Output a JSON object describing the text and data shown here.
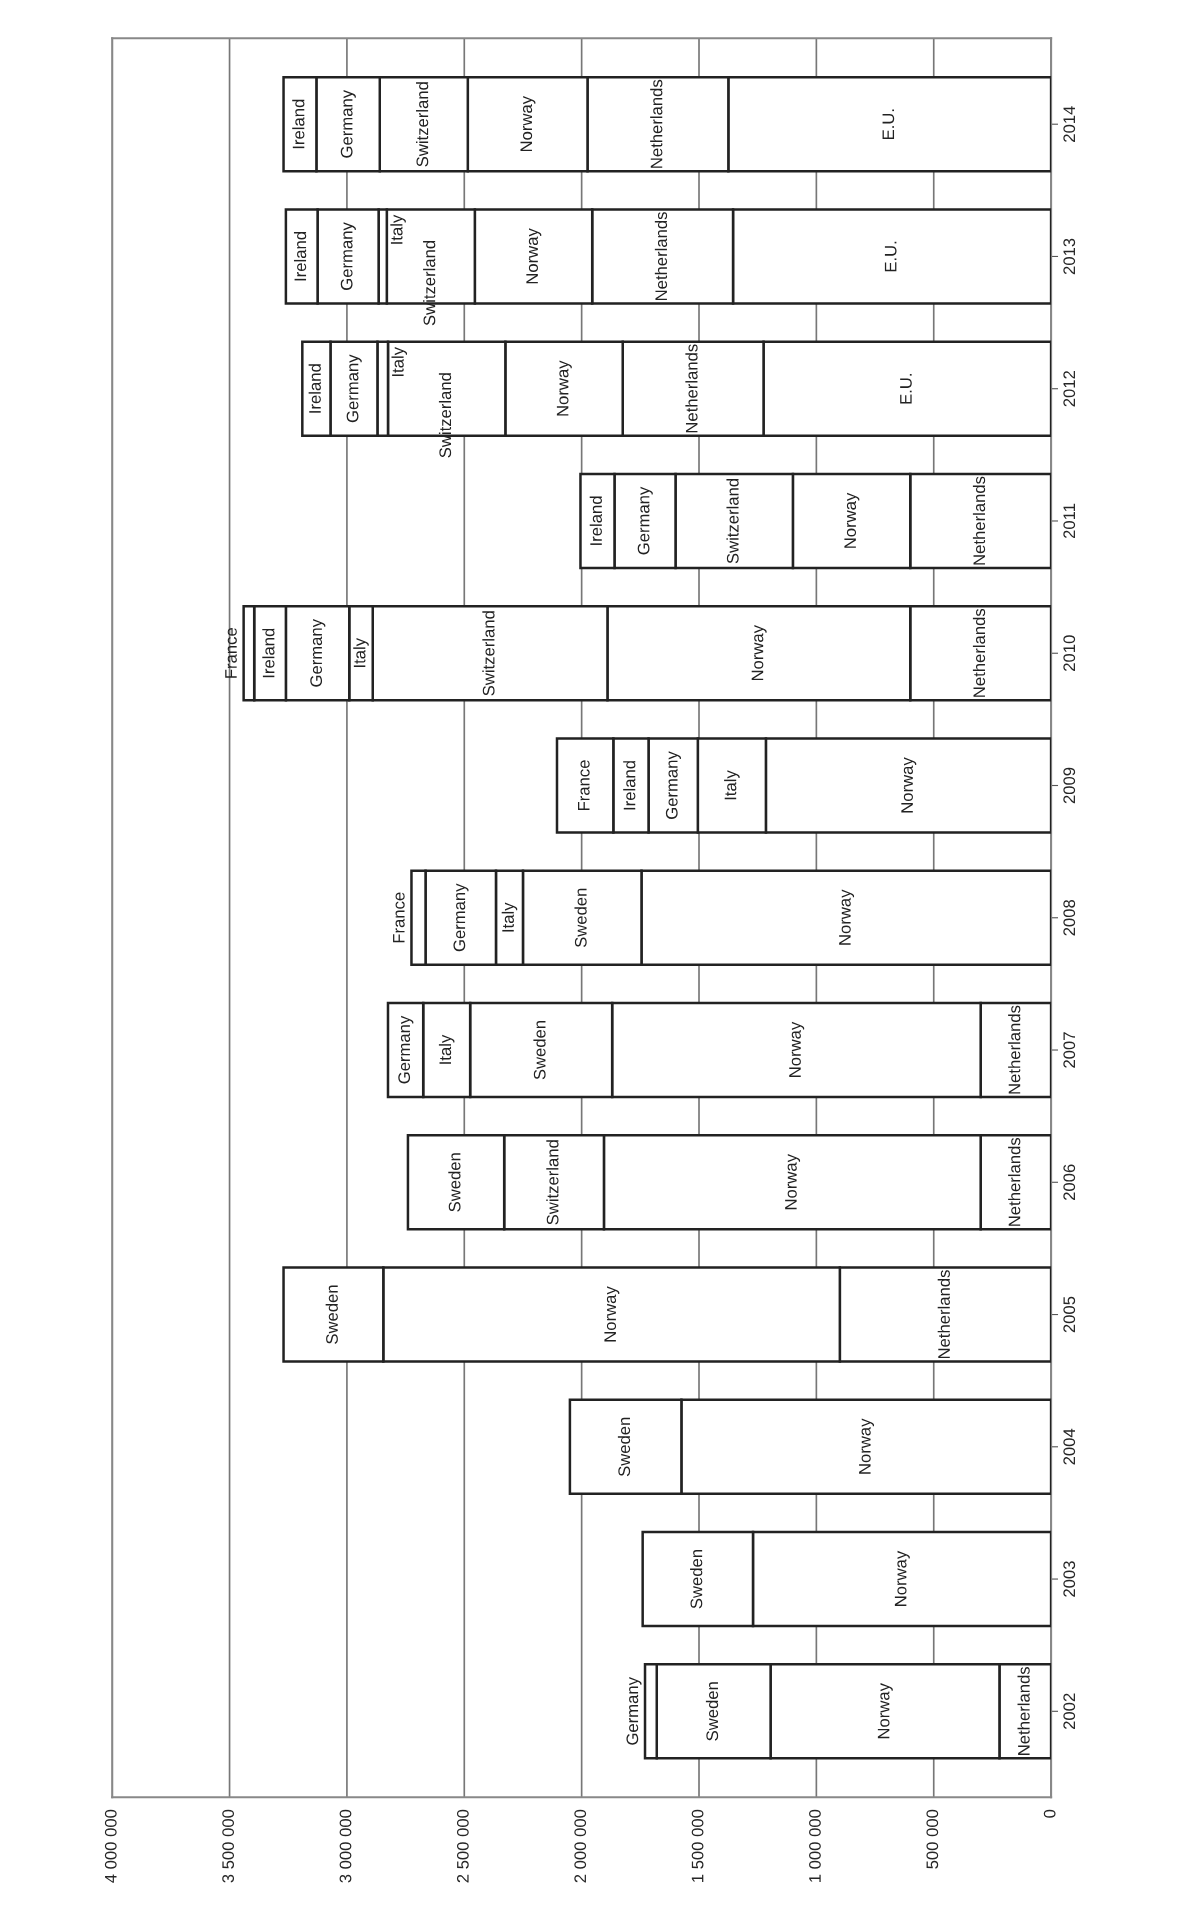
{
  "chart_data": {
    "type": "bar",
    "orientation": "horizontal",
    "stacked": true,
    "categories": [
      "2014",
      "2013",
      "2012",
      "2011",
      "2010",
      "2009",
      "2008",
      "2007",
      "2006",
      "2005",
      "2004",
      "2003",
      "2002"
    ],
    "series": [
      {
        "name": "E.U.",
        "color": "#ffffff",
        "values": [
          1375000,
          1355000,
          1225000,
          null,
          null,
          null,
          null,
          null,
          null,
          null,
          null,
          null,
          null
        ]
      },
      {
        "name": "Netherlands",
        "color": "#ffffff",
        "values": [
          600000,
          600000,
          600000,
          600000,
          600000,
          null,
          null,
          300000,
          300000,
          900000,
          null,
          null,
          220000
        ]
      },
      {
        "name": "Norway",
        "color": "#ffffff",
        "values": [
          510000,
          500000,
          500000,
          500000,
          1290000,
          1215000,
          1745000,
          1570000,
          1605000,
          1945000,
          1575000,
          1270000,
          975000
        ]
      },
      {
        "name": "Switzerland",
        "color": "#ffffff",
        "values": [
          375000,
          375000,
          500000,
          500000,
          1000000,
          null,
          null,
          null,
          425000,
          null,
          null,
          null,
          null
        ]
      },
      {
        "name": "Sweden",
        "color": "#ffffff",
        "values": [
          null,
          null,
          null,
          null,
          null,
          null,
          505000,
          605000,
          410000,
          425000,
          475000,
          470000,
          485000
        ]
      },
      {
        "name": "Italy",
        "color": "#ffffff",
        "values": [
          null,
          35000,
          45000,
          null,
          100000,
          290000,
          115000,
          200000,
          null,
          null,
          null,
          null,
          null
        ]
      },
      {
        "name": "Germany",
        "color": "#ffffff",
        "values": [
          270000,
          260000,
          200000,
          260000,
          270000,
          210000,
          300000,
          150000,
          null,
          null,
          null,
          null,
          50000
        ]
      },
      {
        "name": "Ireland",
        "color": "#ffffff",
        "values": [
          140000,
          135000,
          120000,
          145000,
          135000,
          150000,
          null,
          null,
          null,
          null,
          null,
          null,
          null
        ]
      },
      {
        "name": "France",
        "color": "#ffffff",
        "values": [
          null,
          null,
          null,
          null,
          45000,
          240000,
          60000,
          null,
          null,
          null,
          null,
          null,
          null
        ]
      }
    ],
    "xlim": [
      4000000,
      0
    ],
    "xticks": [
      {
        "value": 4000000,
        "label": "4 000 000"
      },
      {
        "value": 3500000,
        "label": "3 500 000"
      },
      {
        "value": 3000000,
        "label": "3 000 000"
      },
      {
        "value": 2500000,
        "label": "2 500 000"
      },
      {
        "value": 2000000,
        "label": "2 000 000"
      },
      {
        "value": 1500000,
        "label": "1 500 000"
      },
      {
        "value": 1000000,
        "label": "1 000 000"
      },
      {
        "value": 500000,
        "label": "500 000"
      },
      0
    ],
    "grid": "x",
    "legend": false
  }
}
